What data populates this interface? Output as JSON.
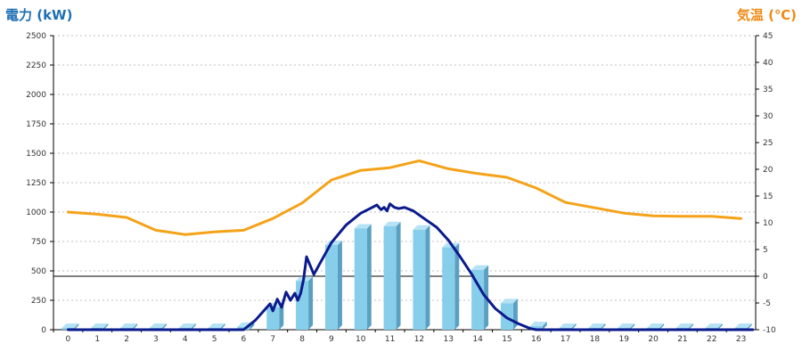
{
  "chart_data": {
    "type": "bar",
    "title": "",
    "xlabel": "",
    "ylabel_left": "電力 (kW)",
    "ylabel_right": "気温 (℃)",
    "categories": [
      "0",
      "1",
      "2",
      "3",
      "4",
      "5",
      "6",
      "7",
      "8",
      "9",
      "10",
      "11",
      "12",
      "13",
      "14",
      "15",
      "16",
      "17",
      "18",
      "19",
      "20",
      "21",
      "22",
      "23"
    ],
    "ylim_left": [
      0,
      2500
    ],
    "yticks_left": [
      0,
      250,
      500,
      750,
      1000,
      1250,
      1500,
      1750,
      2000,
      2250,
      2500
    ],
    "ylim_right": [
      -10,
      45
    ],
    "yticks_right": [
      -10,
      -5,
      0,
      5,
      10,
      15,
      20,
      25,
      30,
      35,
      40,
      45
    ],
    "grid": true,
    "series": [
      {
        "type": "bar",
        "axis": "left",
        "values": [
          0,
          0,
          0,
          0,
          0,
          0,
          25,
          190,
          415,
          720,
          860,
          880,
          850,
          700,
          510,
          225,
          30,
          0,
          0,
          0,
          0,
          0,
          0,
          0
        ]
      },
      {
        "type": "line",
        "axis": "left",
        "x": [
          0,
          6,
          6.4,
          6.9,
          7.0,
          7.15,
          7.3,
          7.45,
          7.6,
          7.75,
          7.85,
          7.95,
          8.05,
          8.15,
          8.4,
          9.0,
          9.5,
          10.0,
          10.4,
          10.55,
          10.7,
          10.8,
          10.9,
          11.0,
          11.15,
          11.3,
          11.5,
          11.8,
          12.2,
          12.6,
          13.0,
          13.4,
          13.8,
          14.2,
          14.6,
          15.0,
          15.4,
          15.8,
          16.0,
          23.4
        ],
        "values": [
          0,
          0,
          80,
          220,
          160,
          260,
          190,
          320,
          250,
          310,
          250,
          310,
          430,
          620,
          470,
          740,
          890,
          990,
          1040,
          1060,
          1020,
          1040,
          1010,
          1070,
          1040,
          1030,
          1040,
          1010,
          940,
          870,
          760,
          620,
          470,
          300,
          180,
          100,
          50,
          10,
          0,
          0
        ]
      },
      {
        "type": "line",
        "axis": "right",
        "x": [
          0,
          1,
          2,
          3,
          4,
          5,
          6,
          7,
          8,
          9,
          10,
          11,
          12,
          13,
          14,
          15,
          16,
          17,
          18,
          19,
          20,
          21,
          22,
          23
        ],
        "values": [
          12.0,
          11.6,
          11.0,
          8.6,
          7.8,
          8.3,
          8.6,
          10.8,
          13.7,
          18.0,
          19.8,
          20.3,
          21.6,
          20.1,
          19.2,
          18.5,
          16.5,
          13.8,
          12.8,
          11.8,
          11.3,
          11.2,
          11.2,
          10.8
        ]
      }
    ],
    "colors": {
      "bar_front": "#87ceeb",
      "bar_side": "#5aa0c2",
      "bar_top": "#b5e3f5",
      "power_line": "#0b1a8c",
      "temp_line": "#f5a219",
      "y_left_title": "#1e6fb4",
      "y_right_title": "#f08a14",
      "grid": "#bfbfbf"
    }
  }
}
